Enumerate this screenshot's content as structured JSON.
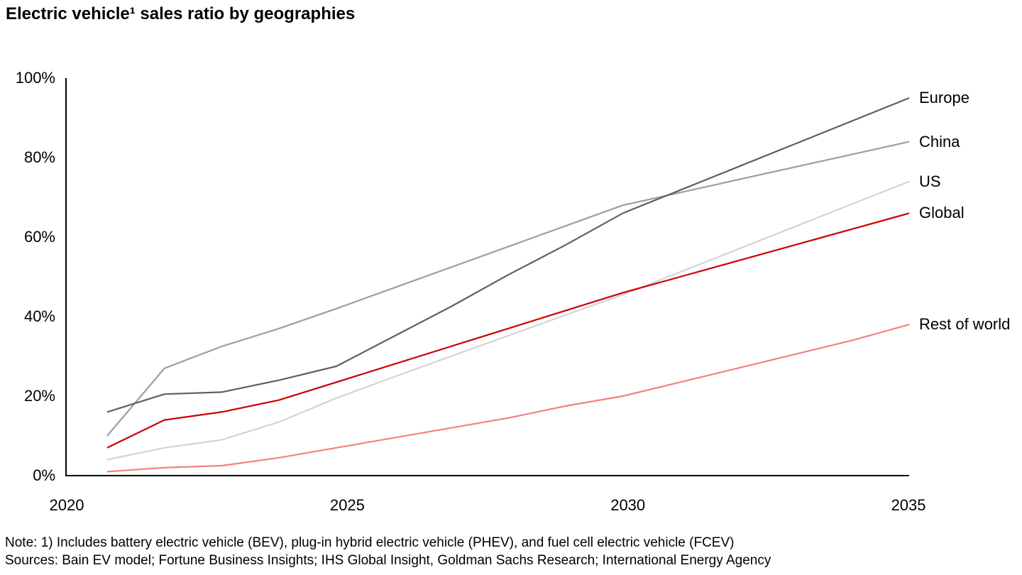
{
  "title": "Electric vehicle¹ sales ratio by geographies",
  "footer": {
    "note": "Note: 1) Includes battery electric vehicle (BEV), plug-in hybrid electric vehicle (PHEV), and fuel cell electric vehicle (FCEV)",
    "sources": "Sources: Bain EV model; Fortune Business Insights; IHS Global Insight, Goldman Sachs Research; International Energy Agency"
  },
  "chart_data": {
    "type": "line",
    "title": "Electric vehicle¹ sales ratio by geographies",
    "xlabel": "",
    "ylabel": "",
    "unit": "%",
    "grid": false,
    "xlim": [
      2020,
      2035.2
    ],
    "ylim": [
      0,
      100
    ],
    "x": [
      2021,
      2022,
      2023,
      2024,
      2025,
      2026,
      2027,
      2028,
      2029,
      2030,
      2031,
      2032,
      2033,
      2034,
      2035
    ],
    "x_ticks": {
      "values": [
        2020,
        2025,
        2030,
        2035
      ],
      "labels": [
        "2020",
        "2025",
        "2030",
        "2035"
      ]
    },
    "y_ticks": {
      "values": [
        0,
        20,
        40,
        60,
        80,
        100
      ],
      "labels": [
        "0%",
        "20%",
        "40%",
        "60%",
        "80%",
        "100%"
      ]
    },
    "legend_position": "right-of-line-ends",
    "axis_color": "#000000",
    "series": [
      {
        "name": "Europe",
        "color": "#606060",
        "values": [
          16,
          20.5,
          21,
          24,
          27.5,
          35,
          42.5,
          50.5,
          58,
          66,
          71.8,
          77.6,
          83.4,
          89.2,
          95
        ]
      },
      {
        "name": "China",
        "color": "#9e9e9e",
        "values": [
          10,
          27,
          32.5,
          37,
          42,
          47.2,
          52.4,
          57.6,
          62.8,
          68,
          71.2,
          74.4,
          77.6,
          80.8,
          84
        ]
      },
      {
        "name": "US",
        "color": "#d3d3d3",
        "values": [
          4,
          7,
          9,
          13.5,
          19.5,
          24.8,
          30,
          35.2,
          40.4,
          45.5,
          51.2,
          56.9,
          62.6,
          68.3,
          74
        ]
      },
      {
        "name": "Global",
        "color": "#cc0000",
        "values": [
          7,
          14,
          16,
          19,
          23.5,
          28,
          32.5,
          37,
          41.5,
          46,
          50,
          54,
          58,
          62,
          66
        ]
      },
      {
        "name": "Rest of world",
        "color": "#f58080",
        "values": [
          1,
          2,
          2.5,
          4.5,
          7,
          9.5,
          12,
          14.5,
          17.5,
          20,
          23.5,
          27,
          30.5,
          34,
          38
        ]
      }
    ]
  }
}
